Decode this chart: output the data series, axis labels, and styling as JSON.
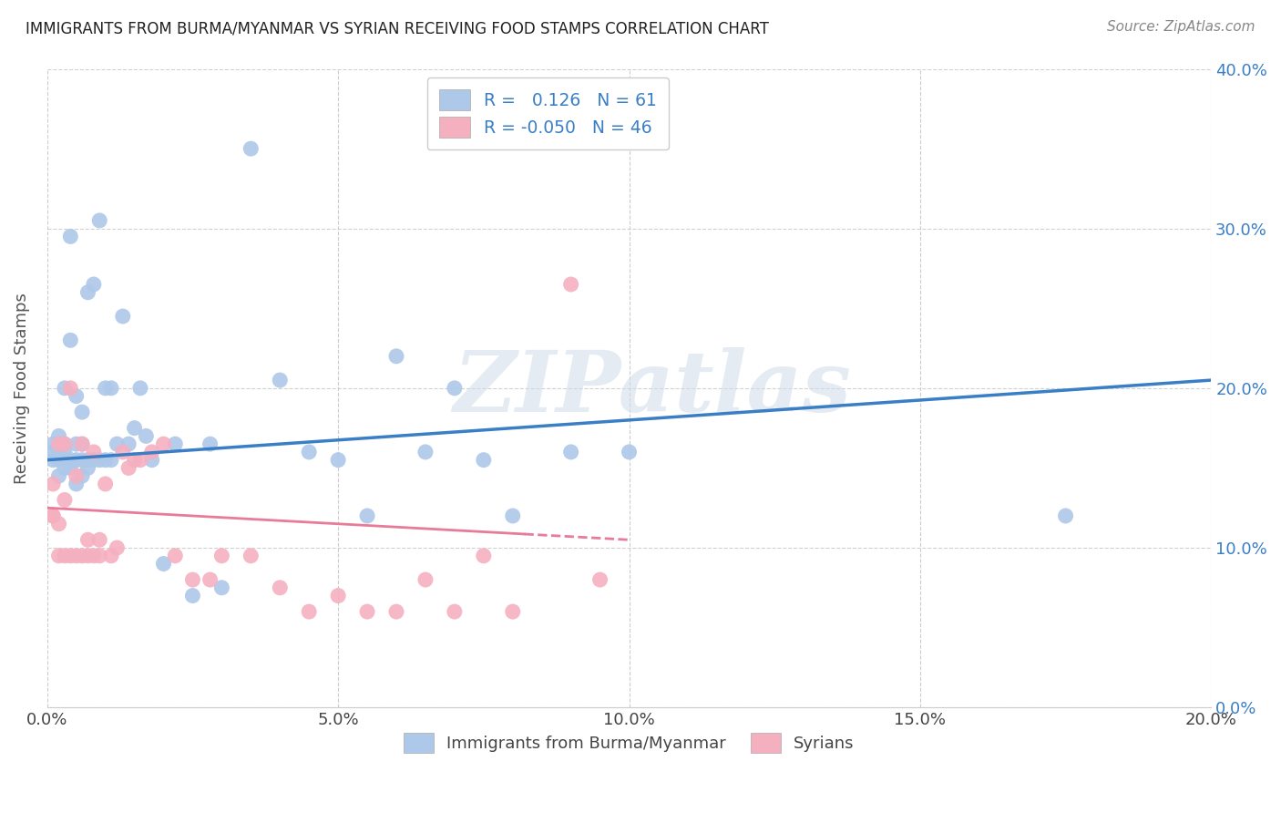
{
  "title": "IMMIGRANTS FROM BURMA/MYANMAR VS SYRIAN RECEIVING FOOD STAMPS CORRELATION CHART",
  "source": "Source: ZipAtlas.com",
  "ylabel": "Receiving Food Stamps",
  "xlim": [
    0.0,
    0.2
  ],
  "ylim": [
    0.0,
    0.4
  ],
  "blue_R": "0.126",
  "blue_N": "61",
  "pink_R": "-0.050",
  "pink_N": "46",
  "blue_color": "#adc8e8",
  "pink_color": "#f5b0c0",
  "blue_line_color": "#3a7ec6",
  "pink_line_color": "#e87a9a",
  "watermark": "ZIPatlas",
  "legend_label_blue": "Immigrants from Burma/Myanmar",
  "legend_label_pink": "Syrians",
  "blue_scatter_x": [
    0.001,
    0.001,
    0.001,
    0.002,
    0.002,
    0.002,
    0.002,
    0.002,
    0.003,
    0.003,
    0.003,
    0.003,
    0.003,
    0.004,
    0.004,
    0.004,
    0.004,
    0.005,
    0.005,
    0.005,
    0.005,
    0.006,
    0.006,
    0.006,
    0.006,
    0.007,
    0.007,
    0.007,
    0.008,
    0.008,
    0.009,
    0.009,
    0.01,
    0.01,
    0.011,
    0.011,
    0.012,
    0.013,
    0.014,
    0.015,
    0.016,
    0.017,
    0.018,
    0.02,
    0.022,
    0.025,
    0.028,
    0.03,
    0.035,
    0.04,
    0.045,
    0.05,
    0.055,
    0.06,
    0.065,
    0.07,
    0.075,
    0.08,
    0.09,
    0.1,
    0.175
  ],
  "blue_scatter_y": [
    0.155,
    0.16,
    0.165,
    0.145,
    0.155,
    0.16,
    0.165,
    0.17,
    0.15,
    0.155,
    0.16,
    0.165,
    0.2,
    0.15,
    0.155,
    0.23,
    0.295,
    0.14,
    0.155,
    0.165,
    0.195,
    0.145,
    0.155,
    0.165,
    0.185,
    0.15,
    0.155,
    0.26,
    0.155,
    0.265,
    0.155,
    0.305,
    0.155,
    0.2,
    0.155,
    0.2,
    0.165,
    0.245,
    0.165,
    0.175,
    0.2,
    0.17,
    0.155,
    0.09,
    0.165,
    0.07,
    0.165,
    0.075,
    0.35,
    0.205,
    0.16,
    0.155,
    0.12,
    0.22,
    0.16,
    0.2,
    0.155,
    0.12,
    0.16,
    0.16,
    0.12
  ],
  "pink_scatter_x": [
    0.001,
    0.001,
    0.001,
    0.002,
    0.002,
    0.002,
    0.003,
    0.003,
    0.003,
    0.004,
    0.004,
    0.005,
    0.005,
    0.006,
    0.006,
    0.007,
    0.007,
    0.008,
    0.008,
    0.009,
    0.009,
    0.01,
    0.011,
    0.012,
    0.013,
    0.014,
    0.015,
    0.016,
    0.018,
    0.02,
    0.022,
    0.025,
    0.028,
    0.03,
    0.035,
    0.04,
    0.045,
    0.05,
    0.055,
    0.06,
    0.065,
    0.07,
    0.075,
    0.08,
    0.09,
    0.095
  ],
  "pink_scatter_y": [
    0.12,
    0.12,
    0.14,
    0.095,
    0.115,
    0.165,
    0.095,
    0.13,
    0.165,
    0.095,
    0.2,
    0.095,
    0.145,
    0.095,
    0.165,
    0.095,
    0.105,
    0.095,
    0.16,
    0.095,
    0.105,
    0.14,
    0.095,
    0.1,
    0.16,
    0.15,
    0.155,
    0.155,
    0.16,
    0.165,
    0.095,
    0.08,
    0.08,
    0.095,
    0.095,
    0.075,
    0.06,
    0.07,
    0.06,
    0.06,
    0.08,
    0.06,
    0.095,
    0.06,
    0.265,
    0.08
  ],
  "blue_line_x": [
    0.0,
    0.2
  ],
  "blue_line_y": [
    0.155,
    0.205
  ],
  "pink_line_x": [
    0.0,
    0.1
  ],
  "pink_line_y": [
    0.125,
    0.105
  ]
}
